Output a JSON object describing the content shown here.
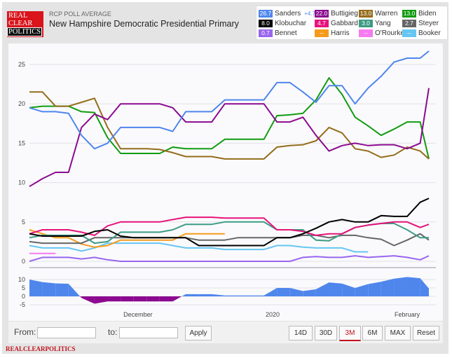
{
  "header": {
    "logo_text": [
      "REAL",
      "CLEAR",
      "POLITICS"
    ],
    "subtitle": "RCP POLL AVERAGE",
    "title": "New Hampshire Democratic Presidential Primary"
  },
  "legend": [
    {
      "name": "Sanders",
      "value": "26.7",
      "color": "#4f86ec",
      "spread": "+4.7"
    },
    {
      "name": "Buttigieg",
      "value": "22.0",
      "color": "#8b0a8f"
    },
    {
      "name": "Warren",
      "value": "13.0",
      "color": "#946d1b"
    },
    {
      "name": "Biden",
      "value": "13.0",
      "color": "#119c11"
    },
    {
      "name": "Klobuchar",
      "value": "8.0",
      "color": "#000000"
    },
    {
      "name": "Gabbard",
      "value": "4.7",
      "color": "#e6137b"
    },
    {
      "name": "Yang",
      "value": "3.0",
      "color": "#3d9b83"
    },
    {
      "name": "Steyer",
      "value": "2.7",
      "color": "#666666"
    },
    {
      "name": "Bennet",
      "value": "0.7",
      "color": "#9966ee"
    },
    {
      "name": "Harris",
      "value": "--",
      "color": "#f59b1c"
    },
    {
      "name": "O'Rourke",
      "value": "--",
      "color": "#f57bf0"
    },
    {
      "name": "Booker",
      "value": "--",
      "color": "#66c6f2"
    }
  ],
  "chart_data": {
    "type": "line",
    "ylim": [
      0,
      27
    ],
    "yticks": [
      0,
      5,
      10,
      15,
      20,
      25
    ],
    "grid": true,
    "xticks": [
      {
        "date": "2019-12-01",
        "label": "December"
      },
      {
        "date": "2020-01-01",
        "label": "2020"
      },
      {
        "date": "2020-02-01",
        "label": "February"
      }
    ],
    "x": [
      "2019-11-06",
      "2019-11-09",
      "2019-11-12",
      "2019-11-15",
      "2019-11-18",
      "2019-11-21",
      "2019-11-24",
      "2019-11-27",
      "2019-11-30",
      "2019-12-03",
      "2019-12-06",
      "2019-12-09",
      "2019-12-12",
      "2019-12-15",
      "2019-12-18",
      "2019-12-21",
      "2019-12-24",
      "2019-12-27",
      "2019-12-30",
      "2020-01-02",
      "2020-01-05",
      "2020-01-08",
      "2020-01-11",
      "2020-01-14",
      "2020-01-17",
      "2020-01-20",
      "2020-01-23",
      "2020-01-26",
      "2020-01-29",
      "2020-02-01",
      "2020-02-04",
      "2020-02-06"
    ],
    "series": [
      {
        "name": "Sanders",
        "color": "#4f86ec",
        "values": [
          19.5,
          19,
          19,
          18.8,
          16,
          14.3,
          15,
          17,
          17,
          17,
          17,
          16.5,
          19,
          19,
          19,
          20.5,
          20.5,
          20.5,
          20.5,
          22.7,
          22.7,
          21.5,
          20.2,
          22.3,
          22.3,
          20,
          22,
          23.5,
          25.3,
          25.8,
          25.8,
          26.7
        ]
      },
      {
        "name": "Buttigieg",
        "color": "#8b0a8f",
        "values": [
          9.5,
          10.5,
          11.3,
          11.3,
          17,
          18.7,
          18,
          20,
          20,
          20,
          20,
          19.5,
          17.7,
          17.7,
          17.7,
          20,
          20,
          20,
          20,
          17.7,
          17.7,
          18.3,
          16,
          14,
          14.7,
          15,
          14.7,
          14.8,
          14.8,
          14.3,
          15,
          22
        ]
      },
      {
        "name": "Warren",
        "color": "#946d1b",
        "values": [
          21.5,
          21.5,
          19.7,
          19.7,
          20.2,
          20.7,
          17,
          14.3,
          14.3,
          14.3,
          14.2,
          13.8,
          13.3,
          13.3,
          13.3,
          13,
          13,
          13,
          13,
          14.5,
          14.7,
          14.8,
          15.3,
          17,
          16.3,
          14.3,
          14,
          13.2,
          13.5,
          14.5,
          14,
          13
        ]
      },
      {
        "name": "Biden",
        "color": "#119c11",
        "values": [
          19.5,
          19.7,
          19.7,
          19.7,
          19,
          18.9,
          15.7,
          13.7,
          13.7,
          13.7,
          13.7,
          14.5,
          14.3,
          14.3,
          14.3,
          15.5,
          15.5,
          15.5,
          15.5,
          18.5,
          18.6,
          18.8,
          20.5,
          23.3,
          21.2,
          18.3,
          17.2,
          16,
          16.8,
          17.7,
          17.7,
          13
        ]
      },
      {
        "name": "Klobuchar",
        "color": "#000000",
        "values": [
          3.5,
          3.2,
          3.2,
          3.2,
          3.2,
          3.8,
          4,
          3.2,
          3,
          3,
          3,
          3,
          3,
          2,
          2,
          2,
          2,
          2,
          2,
          3,
          3,
          3.5,
          4.2,
          5,
          5.3,
          5,
          5,
          5.8,
          5.7,
          5.7,
          7.5,
          8
        ]
      },
      {
        "name": "Gabbard",
        "color": "#e6137b",
        "values": [
          3.5,
          4,
          4,
          4,
          3.7,
          3.3,
          4.5,
          5,
          5,
          5,
          5,
          5.3,
          5.6,
          5.6,
          5.6,
          5.5,
          5.5,
          5.5,
          5.5,
          4,
          4,
          3.8,
          3.3,
          3.5,
          3.5,
          4.3,
          4.6,
          4.8,
          5,
          5,
          4.3,
          4.7
        ]
      },
      {
        "name": "Yang",
        "color": "#3d9b83",
        "values": [
          3,
          3.3,
          3.3,
          3.3,
          3.3,
          2.3,
          2.5,
          3.7,
          3.7,
          3.7,
          3.7,
          4,
          4.7,
          4.7,
          4.7,
          5,
          5,
          5,
          5,
          4,
          4,
          4,
          2.7,
          2.6,
          3.5,
          4.3,
          4.6,
          4.8,
          4.8,
          4,
          3,
          3
        ]
      },
      {
        "name": "Steyer",
        "color": "#666666",
        "values": [
          2.5,
          2.3,
          2.3,
          2.3,
          2.3,
          3,
          3,
          3,
          3,
          3,
          3,
          3,
          3,
          2.7,
          2.7,
          2.7,
          3,
          3,
          3,
          3,
          3,
          3.3,
          3.3,
          3,
          3.3,
          3.3,
          3,
          2.8,
          2,
          2.7,
          3.5,
          2.7
        ]
      },
      {
        "name": "Bennet",
        "color": "#9966ee",
        "values": [
          0,
          0.5,
          0.5,
          0.5,
          0.3,
          0.5,
          0.2,
          0,
          0,
          0,
          0,
          0,
          0,
          0,
          0,
          0,
          0,
          0,
          0,
          0,
          0,
          0.5,
          0.6,
          0.5,
          0.5,
          0.7,
          0.5,
          0.6,
          0.7,
          0.5,
          0.2,
          0.7
        ]
      },
      {
        "name": "Harris",
        "color": "#f59b1c",
        "values": [
          4,
          3.5,
          3,
          3,
          2.2,
          1.8,
          2,
          2.7,
          2.7,
          2.7,
          2.7,
          2.7,
          3.5,
          3.5,
          3.5,
          3.5,
          null,
          null,
          null,
          null,
          null,
          null,
          null,
          null,
          null,
          null,
          null,
          null,
          null,
          null,
          null,
          null
        ]
      },
      {
        "name": "O'Rourke",
        "color": "#f57bf0",
        "values": [
          1,
          1,
          1,
          null,
          null,
          null,
          null,
          null,
          null,
          null,
          null,
          null,
          null,
          null,
          null,
          null,
          null,
          null,
          null,
          null,
          null,
          null,
          null,
          null,
          null,
          null,
          null,
          null,
          null,
          null,
          null,
          null
        ]
      },
      {
        "name": "Booker",
        "color": "#66c6f2",
        "values": [
          2,
          1.7,
          1.7,
          1.7,
          1.3,
          1.7,
          2.3,
          2.3,
          2.3,
          2.3,
          2.3,
          2,
          1.7,
          1.7,
          1.7,
          1.5,
          1.5,
          1.5,
          1.5,
          2,
          2,
          1.8,
          1.7,
          1.7,
          1.7,
          1.2,
          1.2,
          null,
          null,
          null,
          null,
          null
        ]
      }
    ],
    "spread": {
      "yticks": [
        10,
        5,
        0,
        -5
      ],
      "ylim": [
        -7,
        13
      ],
      "positive_color": "#4f86ec",
      "negative_color": "#8b0a8f"
    }
  },
  "controls": {
    "from_label": "From:",
    "to_label": "to:",
    "apply_label": "Apply",
    "ranges": [
      "14D",
      "30D",
      "3M",
      "6M",
      "MAX",
      "Reset"
    ],
    "active_range": "3M"
  },
  "footer": "REALCLEARPOLITICS"
}
